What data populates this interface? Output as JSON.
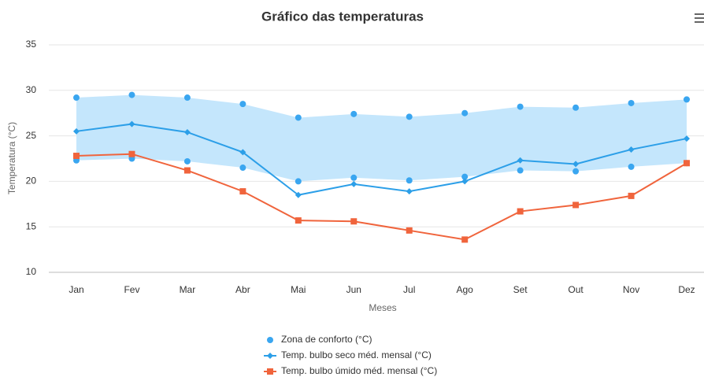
{
  "chart_data": {
    "type": "line",
    "title": "Gráfico das temperaturas",
    "x_label": "Meses",
    "y_label": "Temperatura (°C)",
    "categories": [
      "Jan",
      "Fev",
      "Mar",
      "Abr",
      "Mai",
      "Jun",
      "Jul",
      "Ago",
      "Set",
      "Out",
      "Nov",
      "Dez"
    ],
    "ylim": [
      10,
      35
    ],
    "yticks": [
      10,
      15,
      20,
      25,
      30,
      35
    ],
    "grid": true,
    "legend": "bottom",
    "series": [
      {
        "name": "Zona de conforto (°C)",
        "kind": "range",
        "color": "#3aa6f0",
        "fill": "#c4e6fc",
        "low": [
          22.3,
          22.5,
          22.2,
          21.5,
          20.0,
          20.4,
          20.1,
          20.5,
          21.2,
          21.1,
          21.6,
          22.0
        ],
        "high": [
          29.2,
          29.5,
          29.2,
          28.5,
          27.0,
          27.4,
          27.1,
          27.5,
          28.2,
          28.1,
          28.6,
          29.0
        ]
      },
      {
        "name": "Temp. bulbo seco méd. mensal (°C)",
        "kind": "line",
        "marker": "diamond",
        "color": "#2c9fe8",
        "values": [
          25.5,
          26.3,
          25.4,
          23.2,
          18.5,
          19.7,
          18.9,
          20.0,
          22.3,
          21.9,
          23.5,
          24.7
        ]
      },
      {
        "name": "Temp. bulbo úmido méd. mensal (°C)",
        "kind": "line",
        "marker": "square",
        "color": "#f0643c",
        "values": [
          22.8,
          23.0,
          21.2,
          18.9,
          15.7,
          15.6,
          14.6,
          13.6,
          16.7,
          17.4,
          18.4,
          22.0
        ]
      }
    ]
  }
}
